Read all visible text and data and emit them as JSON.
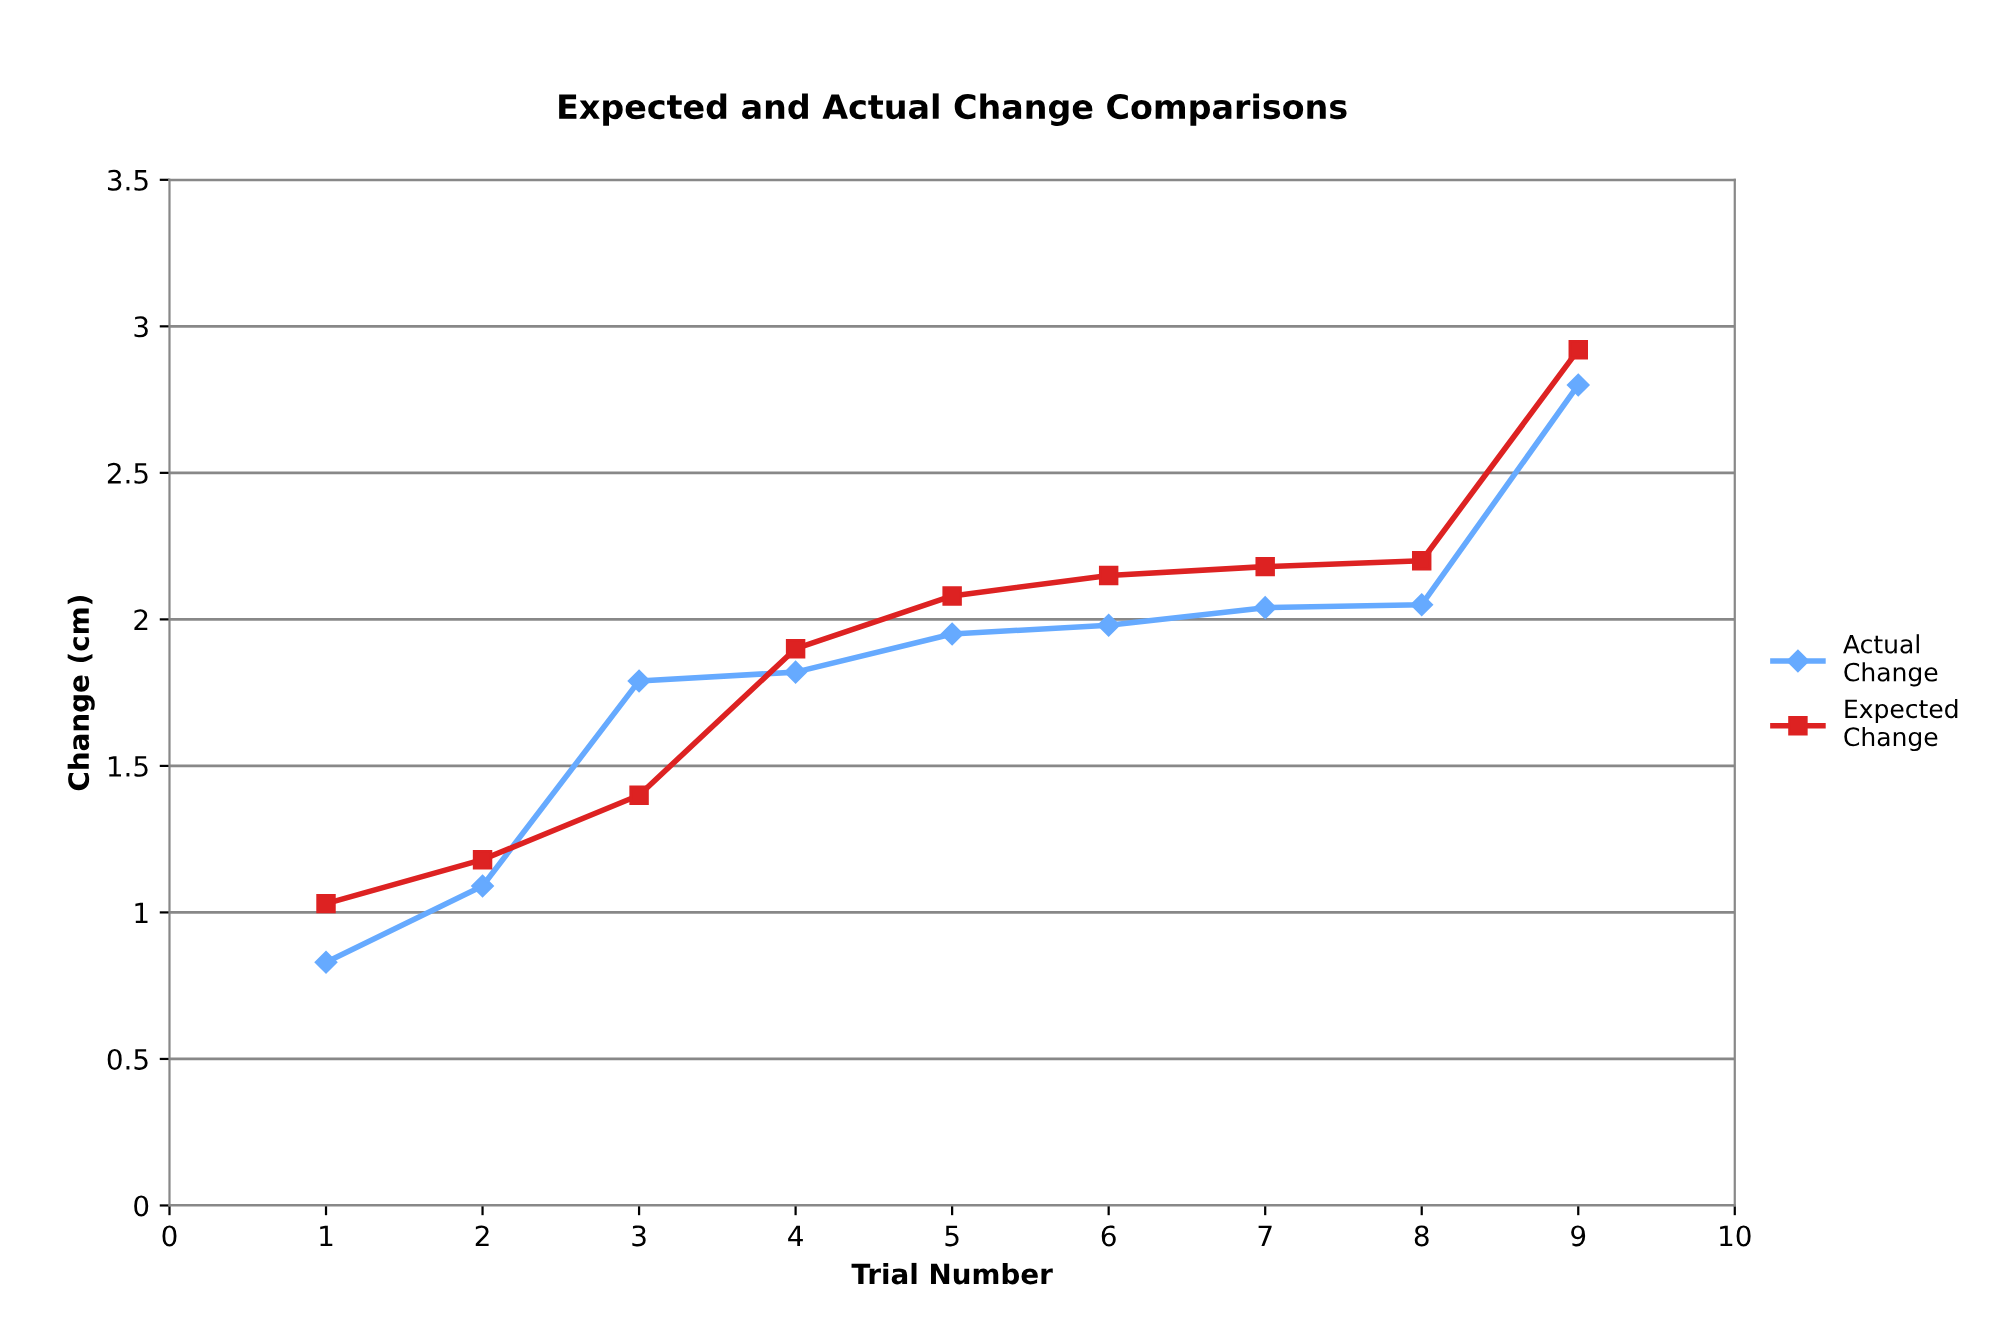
{
  "chart_data": {
    "type": "line",
    "title": "Expected and Actual Change Comparisons",
    "xlabel": "Trial Number",
    "ylabel": "Change (cm)",
    "x": [
      1,
      2,
      3,
      4,
      5,
      6,
      7,
      8,
      9
    ],
    "series": [
      {
        "name": "Actual\nChange",
        "color": "#66aaff",
        "marker": "diamond",
        "values": [
          0.83,
          1.09,
          1.79,
          1.82,
          1.95,
          1.98,
          2.04,
          2.05,
          2.8
        ]
      },
      {
        "name": "Expected\nChange",
        "color": "#dd2222",
        "marker": "square",
        "values": [
          1.03,
          1.18,
          1.4,
          1.9,
          2.08,
          2.15,
          2.18,
          2.2,
          2.92
        ]
      }
    ],
    "xlim": [
      0,
      10
    ],
    "xticks": [
      0,
      1,
      2,
      3,
      4,
      5,
      6,
      7,
      8,
      9,
      10
    ],
    "ylim": [
      0,
      3.5
    ],
    "yticks": [
      0,
      0.5,
      1,
      1.5,
      2,
      2.5,
      3,
      3.5
    ],
    "grid": "y",
    "legend": "right",
    "line_style": "solid"
  }
}
